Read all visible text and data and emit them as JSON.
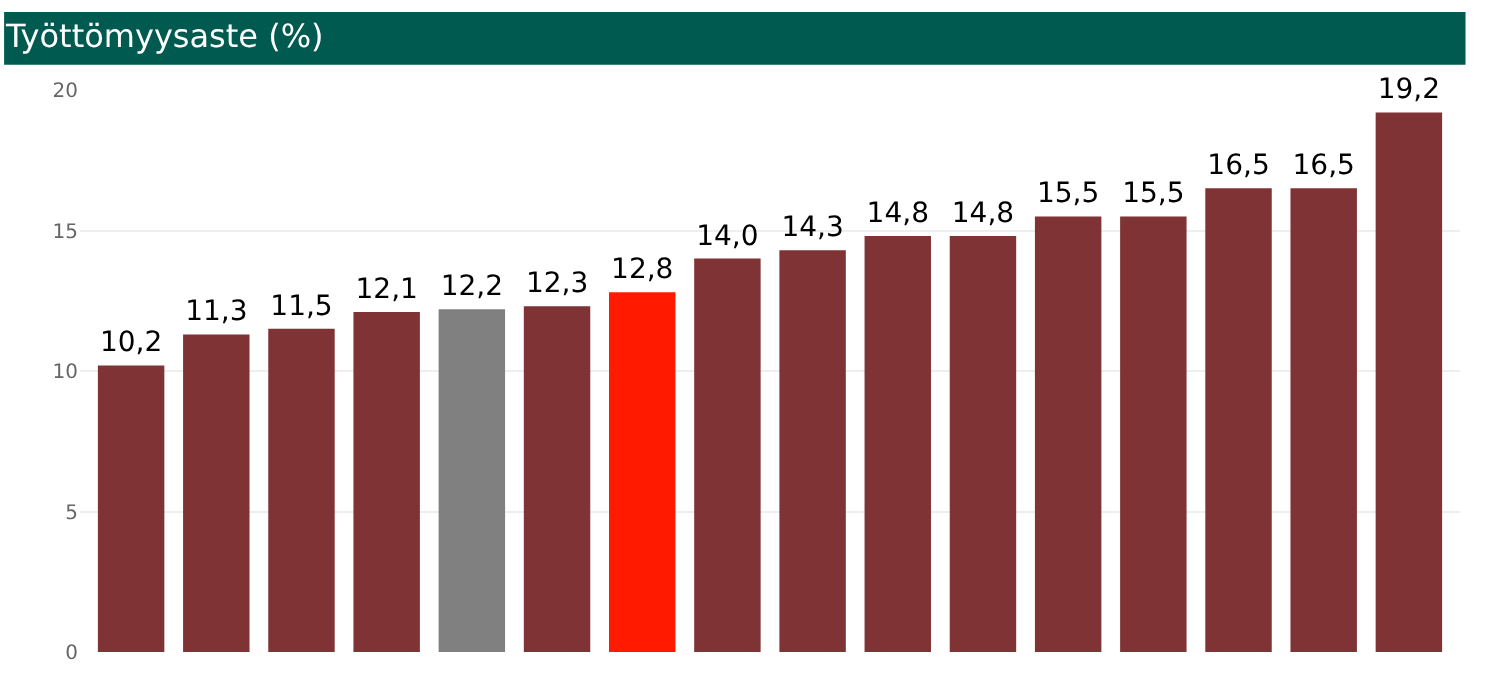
{
  "chart_data": {
    "type": "bar",
    "title": "Työttömyysaste (%)",
    "categories": [
      null,
      null,
      null,
      null,
      null,
      null,
      null,
      null,
      null,
      null,
      null,
      null,
      null,
      null,
      null,
      null
    ],
    "values": [
      10.2,
      11.3,
      11.5,
      12.1,
      12.2,
      12.3,
      12.8,
      14.0,
      14.3,
      14.8,
      14.8,
      15.5,
      15.5,
      16.5,
      16.5,
      19.2
    ],
    "colors": [
      "#7f3334",
      "#7f3334",
      "#7f3334",
      "#7f3334",
      "#808080",
      "#7f3334",
      "#ff1a00",
      "#7f3334",
      "#7f3334",
      "#7f3334",
      "#7f3334",
      "#7f3334",
      "#7f3334",
      "#7f3334",
      "#7f3334",
      "#7f3334"
    ],
    "value_labels": [
      "10,2",
      "11,3",
      "11,5",
      "12,1",
      "12,2",
      "12,3",
      "12,8",
      "14,0",
      "14,3",
      "14,8",
      "14,8",
      "15,5",
      "15,5",
      "16,5",
      "16,5",
      "19,2"
    ],
    "ylim": [
      0,
      20
    ],
    "yticks": [
      0,
      5,
      10,
      15,
      20
    ],
    "grid": "y"
  }
}
